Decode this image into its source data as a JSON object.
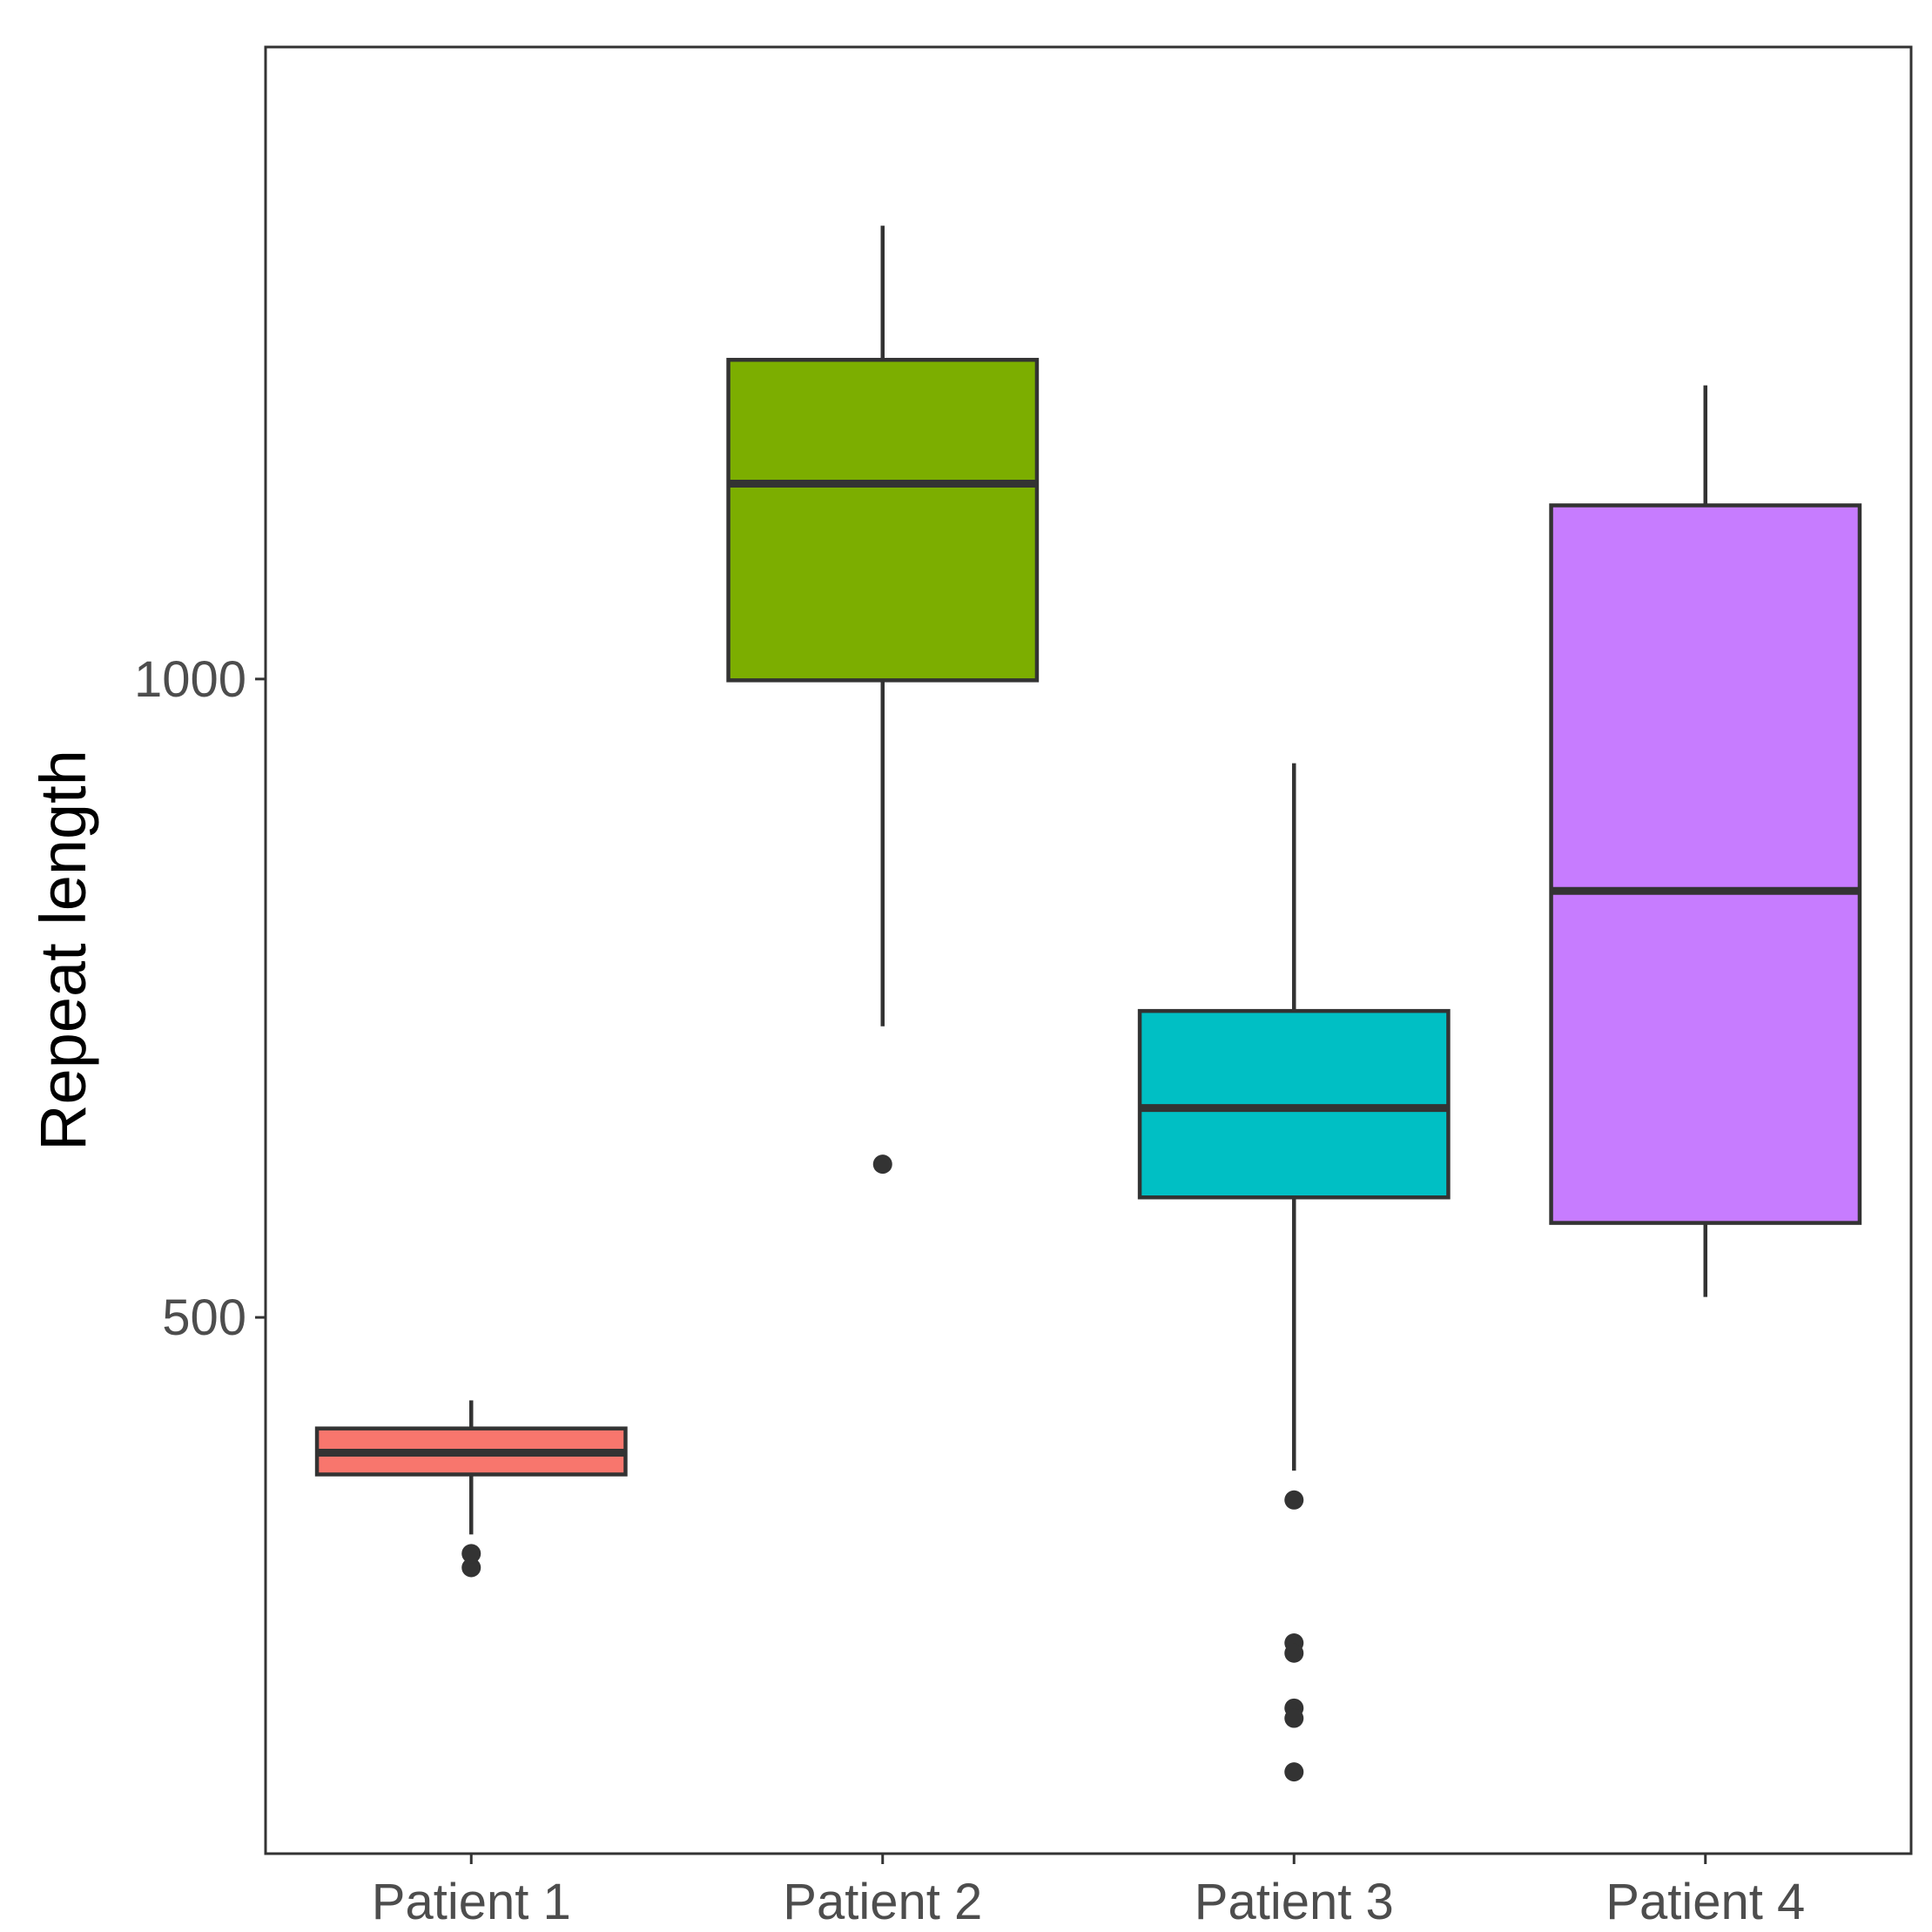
{
  "chart_data": {
    "type": "boxplot",
    "title": "",
    "xlabel": "",
    "ylabel": "Repeat length",
    "ylim": [
      80,
      1495
    ],
    "yticks": [
      500,
      1000
    ],
    "grid": false,
    "legend": "none",
    "categories": [
      "Patient 1",
      "Patient 2",
      "Patient 3",
      "Patient 4"
    ],
    "boxes": [
      {
        "category": "Patient 1",
        "color": "#F8766D",
        "whisker_low": 330,
        "q1": 377,
        "median": 394,
        "q3": 413,
        "whisker_high": 435,
        "outliers": [
          304,
          315
        ]
      },
      {
        "category": "Patient 2",
        "color": "#7CAE00",
        "whisker_low": 728,
        "q1": 999,
        "median": 1153,
        "q3": 1250,
        "whisker_high": 1355,
        "outliers": [
          620
        ]
      },
      {
        "category": "Patient 3",
        "color": "#00BFC4",
        "whisker_low": 380,
        "q1": 594,
        "median": 664,
        "q3": 740,
        "whisker_high": 934,
        "outliers": [
          357,
          245,
          237,
          194,
          186,
          144
        ]
      },
      {
        "category": "Patient 4",
        "color": "#C77CFF",
        "whisker_low": 516,
        "q1": 574,
        "median": 834,
        "q3": 1136,
        "whisker_high": 1230,
        "outliers": []
      }
    ]
  }
}
